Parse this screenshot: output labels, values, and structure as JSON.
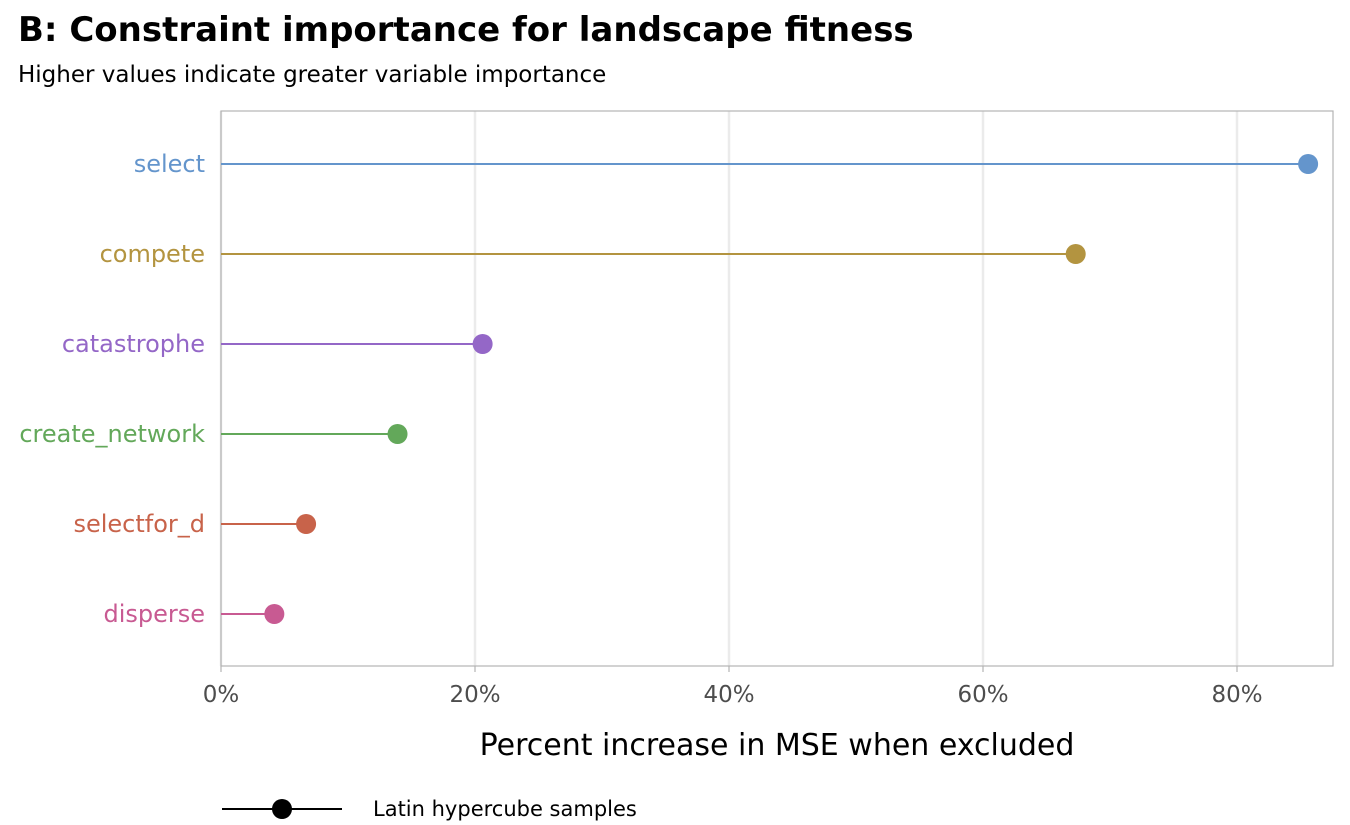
{
  "chart_data": {
    "type": "lollipop",
    "title": "B: Constraint importance for landscape fitness",
    "subtitle": "Higher values indicate greater variable importance",
    "xlabel": "Percent increase in MSE when excluded",
    "ylabel": "",
    "xlim": [
      0,
      87.5
    ],
    "x_ticks": [
      0,
      20,
      40,
      60,
      80
    ],
    "x_tick_labels": [
      "0%",
      "20%",
      "40%",
      "60%",
      "80%"
    ],
    "grid": "vertical-major",
    "legend_position": "bottom-left",
    "legend_label": "Latin hypercube samples",
    "categories": [
      "select",
      "compete",
      "catastrophe",
      "create_network",
      "selectfor_d",
      "disperse"
    ],
    "values": [
      85.6,
      67.3,
      20.6,
      13.9,
      6.7,
      4.2
    ],
    "colors": [
      "#6495cc",
      "#b39440",
      "#9467c7",
      "#63a85a",
      "#c8634a",
      "#c85a92"
    ]
  }
}
